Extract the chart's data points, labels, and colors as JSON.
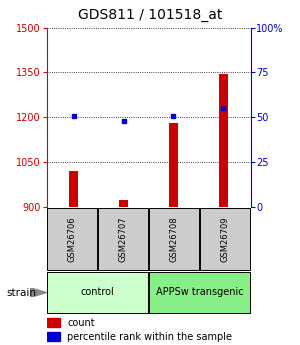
{
  "title": "GDS811 / 101518_at",
  "samples": [
    "GSM26706",
    "GSM26707",
    "GSM26708",
    "GSM26709"
  ],
  "counts": [
    1022,
    922,
    1182,
    1345
  ],
  "percentiles": [
    50.5,
    48,
    50.5,
    55
  ],
  "ylim_left": [
    900,
    1500
  ],
  "ylim_right": [
    0,
    100
  ],
  "yticks_left": [
    900,
    1050,
    1200,
    1350,
    1500
  ],
  "yticks_right": [
    0,
    25,
    50,
    75,
    100
  ],
  "ytick_labels_right": [
    "0",
    "25",
    "50",
    "75",
    "100%"
  ],
  "bar_color": "#cc0000",
  "dot_color": "#0000cc",
  "left_axis_color": "#cc0000",
  "right_axis_color": "#0000cc",
  "groups": [
    {
      "label": "control",
      "indices": [
        0,
        1
      ],
      "color": "#ccffcc"
    },
    {
      "label": "APPSw transgenic",
      "indices": [
        2,
        3
      ],
      "color": "#88ee88"
    }
  ],
  "strain_label": "strain",
  "legend_count_label": "count",
  "legend_percentile_label": "percentile rank within the sample",
  "sample_box_color": "#cccccc",
  "title_fontsize": 10,
  "tick_fontsize": 7,
  "sample_fontsize": 6,
  "group_fontsize": 7,
  "legend_fontsize": 7,
  "bar_width": 0.18
}
